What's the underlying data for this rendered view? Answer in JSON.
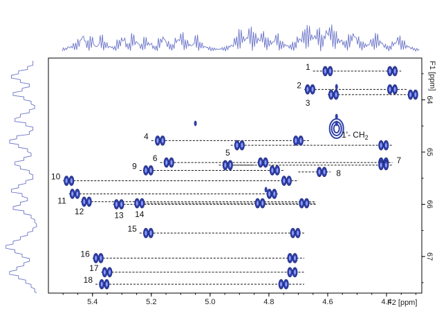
{
  "chart_data": {
    "type": "scatter",
    "subtype": "2D NMR HSQC spectrum",
    "x_axis": {
      "label": "F2 [ppm]",
      "range": [
        5.55,
        4.28
      ],
      "reversed": true,
      "ticks": [
        5.4,
        5.2,
        5.0,
        4.8,
        4.6,
        4.4
      ],
      "tick_labels": [
        "5.4",
        "5.2",
        "5.0",
        "4.8",
        "4.6",
        "4.4"
      ]
    },
    "y_axis": {
      "label": "F1 [ppm]",
      "range": [
        63.2,
        67.7
      ],
      "reversed": true,
      "side": "right",
      "ticks": [
        64,
        65,
        66,
        67
      ],
      "tick_labels": [
        "64",
        "65",
        "66",
        "67"
      ]
    },
    "peak_color": "#2f3fa8",
    "line_color": "#111111",
    "projection_color": "#6a74c8",
    "peak_annotation_label": "1'- CH",
    "peak_annotation_subscript": "2",
    "correlations": [
      {
        "label": "1",
        "y": 63.45,
        "x_from": 4.65,
        "x_to": 4.35,
        "peaks": [
          4.6,
          4.38
        ]
      },
      {
        "label": "2",
        "y": 63.8,
        "x_from": 4.68,
        "x_to": 4.33,
        "peaks": [
          4.66,
          4.38
        ]
      },
      {
        "label": "3",
        "y": 63.9,
        "x_from": 4.6,
        "x_to": 4.3,
        "peaks": [
          4.58,
          4.31
        ]
      },
      {
        "label": "4",
        "y": 64.78,
        "x_from": 5.2,
        "x_to": 4.66,
        "peaks": [
          5.17,
          4.7
        ]
      },
      {
        "label": "",
        "y": 64.87,
        "x_from": 4.93,
        "x_to": 4.38,
        "peaks": [
          4.9,
          4.41
        ]
      },
      {
        "label": "5",
        "y": 65.25,
        "x_from": 4.97,
        "x_to": 4.85,
        "peaks": [
          4.94
        ]
      },
      {
        "label": "6",
        "y": 65.2,
        "x_from": 5.17,
        "x_to": 4.38,
        "peaks": [
          5.14,
          4.82,
          4.41
        ]
      },
      {
        "label": "7",
        "y": 65.25,
        "x_from": 4.93,
        "x_to": 4.38,
        "peaks": [
          4.41
        ]
      },
      {
        "label": "8",
        "y": 65.38,
        "x_from": 4.7,
        "x_to": 4.59,
        "peaks": [
          4.62
        ]
      },
      {
        "label": "9",
        "y": 65.35,
        "x_from": 5.24,
        "x_to": 4.75,
        "peaks": [
          5.21,
          4.78
        ]
      },
      {
        "label": "10",
        "y": 65.55,
        "x_from": 5.5,
        "x_to": 4.7,
        "peaks": [
          5.48,
          4.74
        ]
      },
      {
        "label": "11",
        "y": 65.8,
        "x_from": 5.48,
        "x_to": 4.77,
        "peaks": [
          5.46,
          4.79
        ]
      },
      {
        "label": "12",
        "y": 65.95,
        "x_from": 5.44,
        "x_to": 4.64,
        "peaks": [
          5.42
        ]
      },
      {
        "label": "13",
        "y": 66.0,
        "x_from": 5.33,
        "x_to": 4.64,
        "peaks": [
          5.31
        ]
      },
      {
        "label": "14",
        "y": 65.98,
        "x_from": 5.25,
        "x_to": 4.64,
        "peaks": [
          5.24,
          4.83,
          4.68
        ]
      },
      {
        "label": "15",
        "y": 66.55,
        "x_from": 5.24,
        "x_to": 4.68,
        "peaks": [
          5.21,
          4.71
        ]
      },
      {
        "label": "16",
        "y": 67.03,
        "x_from": 5.4,
        "x_to": 4.68,
        "peaks": [
          5.38,
          4.72
        ]
      },
      {
        "label": "17",
        "y": 67.3,
        "x_from": 5.37,
        "x_to": 4.68,
        "peaks": [
          5.35,
          4.72
        ]
      },
      {
        "label": "18",
        "y": 67.53,
        "x_from": 5.39,
        "x_to": 4.68,
        "peaks": [
          5.36,
          4.75
        ]
      }
    ],
    "extra_peaks": [
      {
        "x": 5.05,
        "y": 64.45
      },
      {
        "x": 4.57,
        "y": 63.75
      },
      {
        "x": 4.57,
        "y": 64.32
      },
      {
        "x": 4.57,
        "y": 64.45
      },
      {
        "x": 4.7,
        "y": 64.8
      },
      {
        "x": 4.81,
        "y": 65.72
      }
    ],
    "top_projection": [
      0.12,
      0.2,
      0.3,
      0.45,
      0.7,
      0.4,
      0.55,
      0.25,
      0.6,
      0.35,
      0.22,
      0.18,
      0.42,
      0.58,
      0.3,
      0.66,
      0.44,
      0.28,
      0.52,
      0.36,
      0.2,
      0.48,
      0.64,
      0.38,
      0.26,
      0.54,
      0.7,
      0.42,
      0.3,
      0.6,
      0.34,
      0.22,
      0.16,
      0.12,
      0.1,
      0.14,
      0.2,
      0.28,
      0.55,
      0.8,
      0.62,
      0.9,
      0.7,
      0.58,
      0.76,
      0.5,
      0.44,
      0.66,
      0.38,
      0.3,
      0.24,
      0.34,
      0.58,
      0.82,
      0.95,
      0.7,
      0.86,
      0.6,
      0.92,
      1.0,
      0.74,
      0.52,
      0.4,
      0.62,
      0.78,
      0.56,
      0.36,
      0.3,
      0.48,
      0.66,
      0.44,
      0.28,
      0.2,
      0.38,
      0.58,
      0.4,
      0.24,
      0.16,
      0.1,
      0.08
    ],
    "left_projection": [
      0.2,
      0.35,
      0.6,
      0.8,
      0.55,
      0.3,
      0.5,
      0.75,
      0.45,
      0.25,
      0.15,
      0.3,
      0.55,
      0.7,
      0.4,
      0.2,
      0.3,
      0.65,
      0.85,
      0.6,
      0.35,
      0.25,
      0.45,
      0.7,
      0.55,
      0.3,
      0.2,
      0.4,
      0.6,
      0.8,
      0.5,
      0.35,
      0.55,
      0.75,
      0.45,
      0.25,
      0.15,
      0.1,
      0.2,
      0.35,
      0.55,
      0.75,
      0.95,
      0.7,
      0.5,
      0.3,
      0.45,
      0.65,
      0.85,
      0.6,
      0.4,
      0.25,
      0.15,
      0.1
    ]
  }
}
